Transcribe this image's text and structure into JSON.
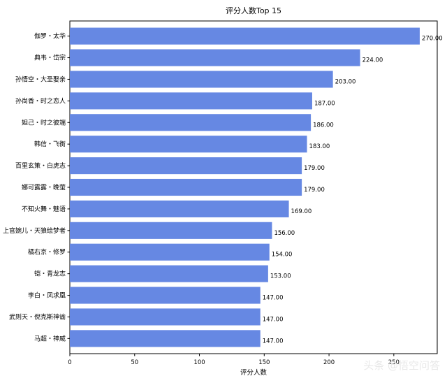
{
  "chart_data": {
    "type": "bar",
    "orientation": "horizontal",
    "title": "评分人数Top 15",
    "xlabel": "评分人数",
    "ylabel": "",
    "xlim": [
      0,
      283.5
    ],
    "xticks": [
      0,
      50,
      100,
      150,
      200,
      250
    ],
    "grid": false,
    "bar_color": "#6688e3",
    "categories": [
      "伽罗・太华",
      "典韦・岱宗",
      "孙悟空・大圣娶亲",
      "孙尚香・时之恋人",
      "妲己・时之彼端",
      "韩信・飞衡",
      "百里玄策・白虎志",
      "娜可露露・晚萤",
      "不知火舞・魅语",
      "上官婉儿・天狼绘梦者",
      "橘右京・修罗",
      "铠・青龙志",
      "李白・凤求凰",
      "武则天・倪克斯神谕",
      "马超・神威"
    ],
    "values": [
      270.0,
      224.0,
      203.0,
      187.0,
      186.0,
      183.0,
      179.0,
      179.0,
      169.0,
      156.0,
      154.0,
      153.0,
      147.0,
      147.0,
      147.0
    ],
    "data_labels": [
      "270.00",
      "224.00",
      "203.00",
      "187.00",
      "186.00",
      "183.00",
      "179.00",
      "179.00",
      "169.00",
      "156.00",
      "154.00",
      "153.00",
      "147.00",
      "147.00",
      "147.00"
    ]
  },
  "watermark": "头条 @悟空问答"
}
